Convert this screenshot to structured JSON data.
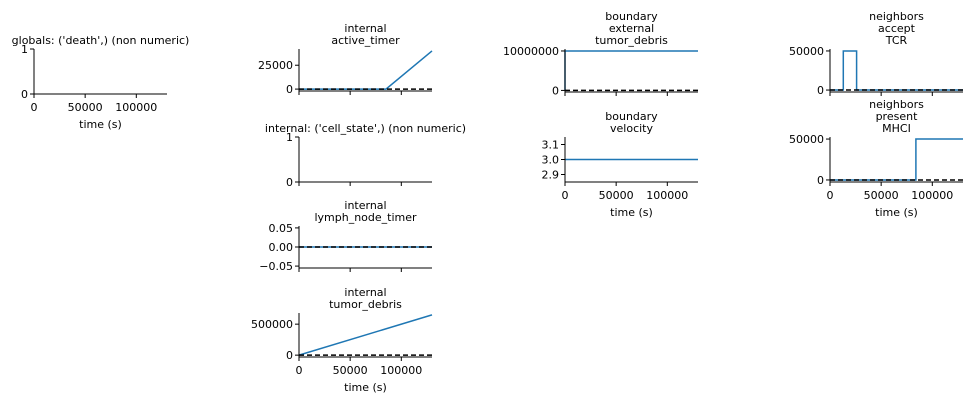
{
  "chart_data": [
    {
      "type": "line",
      "title": "globals: ('death',) (non numeric)",
      "xlabel": "time (s)",
      "ylabel": "",
      "x_ticks": [
        0,
        50000,
        100000
      ],
      "y_ticks": [
        0,
        1
      ],
      "xlim": [
        0,
        130000
      ],
      "ylim": [
        0,
        1
      ],
      "series": []
    },
    {
      "type": "line",
      "title": "internal\nactive_timer",
      "xlabel": "",
      "ylabel": "",
      "x_ticks": [
        0,
        50000,
        100000
      ],
      "y_ticks": [
        0,
        25000
      ],
      "xlim": [
        0,
        130000
      ],
      "ylim": [
        -2000,
        42000
      ],
      "series": [
        {
          "style": "solid",
          "color": "#1f77b4",
          "x": [
            0,
            85000,
            130000
          ],
          "y": [
            0,
            0,
            40000
          ]
        },
        {
          "style": "dashed",
          "color": "#000000",
          "x": [
            0,
            130000
          ],
          "y": [
            0,
            0
          ]
        }
      ]
    },
    {
      "type": "line",
      "title": "internal: ('cell_state',) (non numeric)",
      "xlabel": "",
      "ylabel": "",
      "x_ticks": [
        0,
        50000,
        100000
      ],
      "y_ticks": [
        0,
        1
      ],
      "xlim": [
        0,
        130000
      ],
      "ylim": [
        0,
        1
      ],
      "series": []
    },
    {
      "type": "line",
      "title": "internal\nlymph_node_timer",
      "xlabel": "",
      "ylabel": "",
      "x_ticks": [
        0,
        50000,
        100000
      ],
      "y_ticks": [
        -0.05,
        0.0,
        0.05
      ],
      "y_tick_labels": [
        "−0.05",
        "0.00",
        "0.05"
      ],
      "xlim": [
        0,
        130000
      ],
      "ylim": [
        -0.055,
        0.055
      ],
      "series": [
        {
          "style": "solid",
          "color": "#1f77b4",
          "x": [
            0,
            130000
          ],
          "y": [
            0,
            0
          ]
        },
        {
          "style": "dashed",
          "color": "#000000",
          "x": [
            0,
            130000
          ],
          "y": [
            0,
            0
          ]
        }
      ]
    },
    {
      "type": "line",
      "title": "internal\ntumor_debris",
      "xlabel": "time (s)",
      "ylabel": "",
      "x_ticks": [
        0,
        50000,
        100000
      ],
      "y_ticks": [
        0,
        500000
      ],
      "xlim": [
        0,
        130000
      ],
      "ylim": [
        -30000,
        680000
      ],
      "series": [
        {
          "style": "solid",
          "color": "#1f77b4",
          "x": [
            0,
            130000
          ],
          "y": [
            0,
            650000
          ]
        },
        {
          "style": "dashed",
          "color": "#000000",
          "x": [
            0,
            130000
          ],
          "y": [
            0,
            0
          ]
        }
      ]
    },
    {
      "type": "line",
      "title": "boundary\nexternal\ntumor_debris",
      "xlabel": "",
      "ylabel": "",
      "x_ticks": [
        0,
        50000,
        100000
      ],
      "y_ticks": [
        0,
        10000000
      ],
      "xlim": [
        0,
        130000
      ],
      "ylim": [
        -400000,
        10500000
      ],
      "series": [
        {
          "style": "solid",
          "color": "#1f77b4",
          "x": [
            0,
            0,
            130000
          ],
          "y": [
            0,
            10000000,
            10000000
          ]
        },
        {
          "style": "dashed",
          "color": "#000000",
          "x": [
            0,
            130000
          ],
          "y": [
            0,
            0
          ]
        }
      ]
    },
    {
      "type": "line",
      "title": "boundary\nvelocity",
      "xlabel": "time (s)",
      "ylabel": "",
      "x_ticks": [
        0,
        50000,
        100000
      ],
      "y_ticks": [
        2.9,
        3.0,
        3.1
      ],
      "y_tick_labels": [
        "2.9",
        "3.0",
        "3.1"
      ],
      "xlim": [
        0,
        130000
      ],
      "ylim": [
        2.85,
        3.15
      ],
      "series": [
        {
          "style": "solid",
          "color": "#1f77b4",
          "x": [
            0,
            130000
          ],
          "y": [
            3.0,
            3.0
          ]
        }
      ]
    },
    {
      "type": "line",
      "title": "neighbors\naccept\nTCR",
      "xlabel": "",
      "ylabel": "",
      "x_ticks": [
        0,
        50000,
        100000
      ],
      "y_ticks": [
        0,
        50000
      ],
      "xlim": [
        0,
        130000
      ],
      "ylim": [
        -2500,
        52500
      ],
      "series": [
        {
          "style": "solid",
          "color": "#1f77b4",
          "x": [
            0,
            13000,
            13000,
            26000,
            26000,
            130000
          ],
          "y": [
            0,
            0,
            50000,
            50000,
            0,
            0
          ]
        },
        {
          "style": "dashed",
          "color": "#000000",
          "x": [
            0,
            130000
          ],
          "y": [
            0,
            0
          ]
        }
      ]
    },
    {
      "type": "line",
      "title": "neighbors\npresent\nMHCI",
      "xlabel": "time (s)",
      "ylabel": "",
      "x_ticks": [
        0,
        50000,
        100000
      ],
      "y_ticks": [
        0,
        50000
      ],
      "xlim": [
        0,
        130000
      ],
      "ylim": [
        -2500,
        52500
      ],
      "series": [
        {
          "style": "solid",
          "color": "#1f77b4",
          "x": [
            0,
            84000,
            84000,
            130000
          ],
          "y": [
            0,
            0,
            50000,
            50000
          ]
        },
        {
          "style": "dashed",
          "color": "#000000",
          "x": [
            0,
            130000
          ],
          "y": [
            0,
            0
          ]
        }
      ]
    }
  ]
}
